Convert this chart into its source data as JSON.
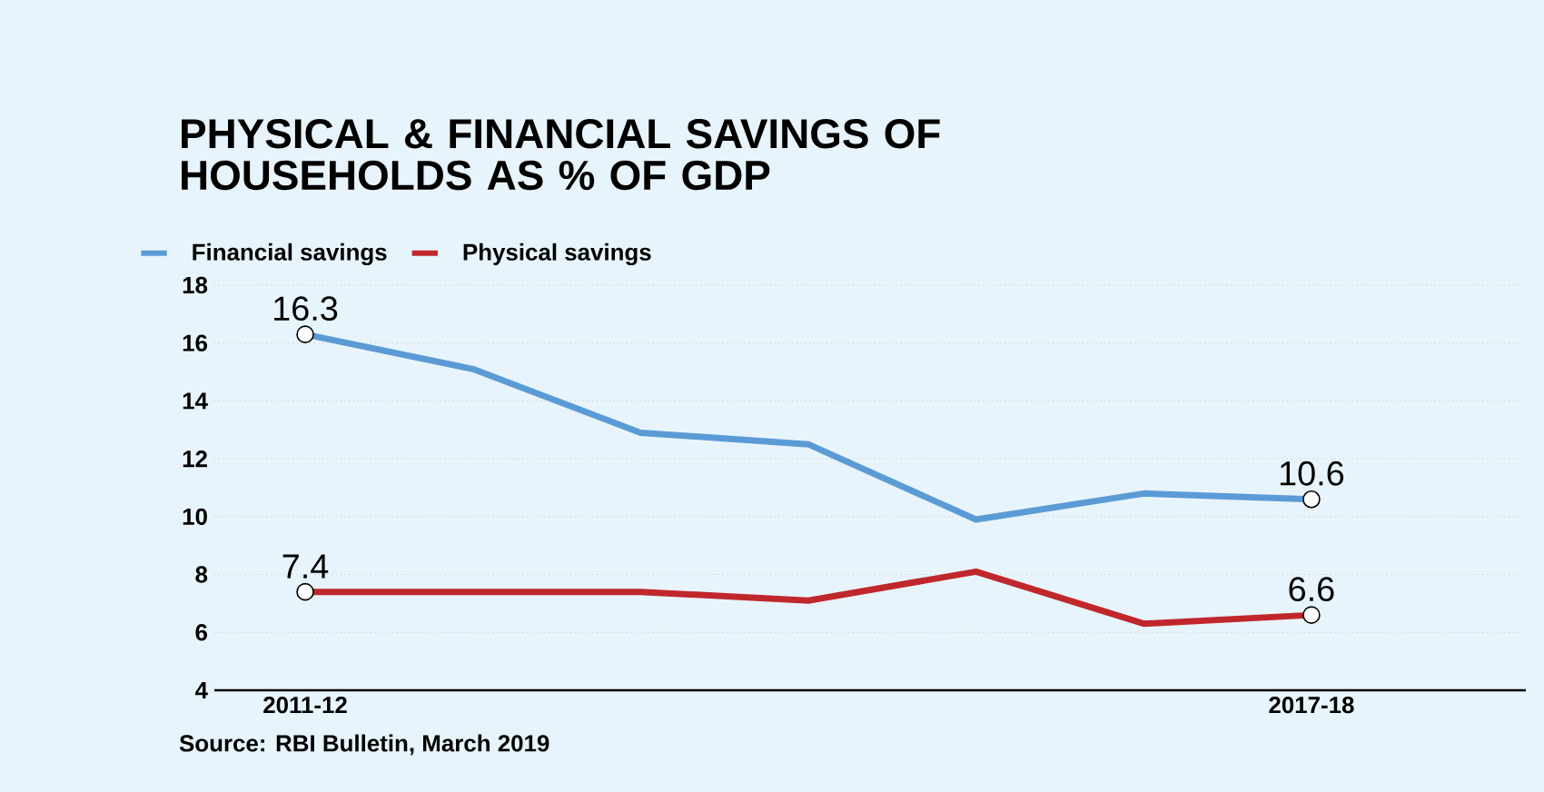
{
  "chart_data": {
    "type": "line",
    "title": "PHYSICAL & FINANCIAL SAVINGS OF HOUSEHOLDS AS % OF GDP",
    "categories": [
      "2011-12",
      null,
      null,
      null,
      null,
      null,
      "2017-18"
    ],
    "series": [
      {
        "name": "Financial savings",
        "color": "#5b9bd5",
        "values": [
          16.3,
          15.1,
          12.9,
          12.5,
          9.9,
          10.8,
          10.6
        ],
        "value_labels": [
          "16.3",
          null,
          null,
          null,
          null,
          null,
          "10.6"
        ]
      },
      {
        "name": "Physical savings",
        "color": "#c0272d",
        "values": [
          7.4,
          7.4,
          7.4,
          7.1,
          8.1,
          6.3,
          6.6
        ],
        "value_labels": [
          "7.4",
          null,
          null,
          null,
          null,
          null,
          "6.6"
        ]
      }
    ],
    "ylim": [
      4,
      18
    ],
    "yticks": [
      4,
      6,
      8,
      10,
      12,
      14,
      16,
      18
    ],
    "grid": "y",
    "legend": "top left",
    "line_style": "solid",
    "annotations": [
      "Source: RBI Bulletin, March 2019"
    ]
  }
}
